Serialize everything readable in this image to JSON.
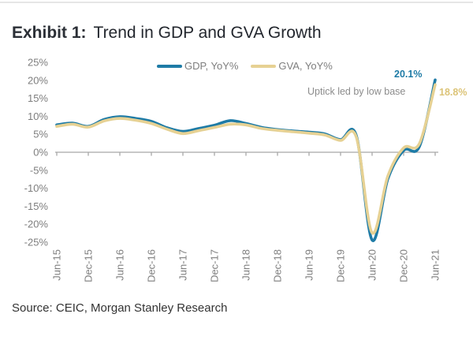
{
  "title": {
    "exhibit": "Exhibit 1:",
    "text": "Trend in GDP and GVA Growth"
  },
  "legend": {
    "gdp": "GDP, YoY%",
    "gva": "GVA, YoY%"
  },
  "annotations": {
    "gdp_value": "20.1%",
    "note": "Uptick led by low base",
    "gva_value": "18.8%",
    "note_color": "#8c8c8c",
    "gva_text_color": "#dcc478"
  },
  "source": "Source: CEIC, Morgan Stanley Research",
  "chart_data": {
    "type": "line",
    "title": "Exhibit 1: Trend in GDP and GVA Growth",
    "xlabel": "",
    "ylabel": "",
    "ylim": [
      -25,
      25
    ],
    "grid": false,
    "legend_position": "top-center",
    "x": [
      "Jun-15",
      "Sep-15",
      "Dec-15",
      "Mar-16",
      "Jun-16",
      "Sep-16",
      "Dec-16",
      "Mar-17",
      "Jun-17",
      "Sep-17",
      "Dec-17",
      "Mar-18",
      "Jun-18",
      "Sep-18",
      "Dec-18",
      "Mar-19",
      "Jun-19",
      "Sep-19",
      "Dec-19",
      "Mar-20",
      "Jun-20",
      "Sep-20",
      "Dec-20",
      "Mar-21",
      "Jun-21"
    ],
    "x_tick_labels": [
      "Jun-15",
      "Dec-15",
      "Jun-16",
      "Dec-16",
      "Jun-17",
      "Dec-17",
      "Jun-18",
      "Dec-18",
      "Jun-19",
      "Dec-19",
      "Jun-20",
      "Dec-20",
      "Jun-21"
    ],
    "y_tick_values": [
      25,
      20,
      15,
      10,
      5,
      0,
      -5,
      -10,
      -15,
      -20,
      -25
    ],
    "y_tick_labels": [
      "25%",
      "20%",
      "15%",
      "10%",
      "5%",
      "0%",
      "-5%",
      "-10%",
      "-15%",
      "-20%",
      "-25%"
    ],
    "series": [
      {
        "name": "GDP, YoY%",
        "color": "#1e7ba6",
        "values": [
          7.6,
          8.1,
          7.2,
          9.1,
          9.9,
          9.4,
          8.6,
          6.8,
          5.8,
          6.6,
          7.5,
          8.8,
          8.0,
          6.9,
          6.3,
          5.9,
          5.6,
          5.1,
          3.5,
          4.6,
          -24.4,
          -7.4,
          0.5,
          1.6,
          20.1
        ]
      },
      {
        "name": "GVA, YoY%",
        "color": "#e6d193",
        "values": [
          7.2,
          7.8,
          7.0,
          8.7,
          9.4,
          8.9,
          8.0,
          6.4,
          5.2,
          6.0,
          6.9,
          7.8,
          7.6,
          6.6,
          6.1,
          5.7,
          5.3,
          4.8,
          3.3,
          4.2,
          -22.4,
          -6.6,
          1.2,
          2.4,
          18.8
        ]
      }
    ],
    "endpoint_labels": {
      "gdp": "20.1%",
      "gva": "18.8%"
    },
    "annotation": "Uptick led by low base",
    "axis_color": "#a8a8a8",
    "label_color": "#7e7e7e"
  }
}
